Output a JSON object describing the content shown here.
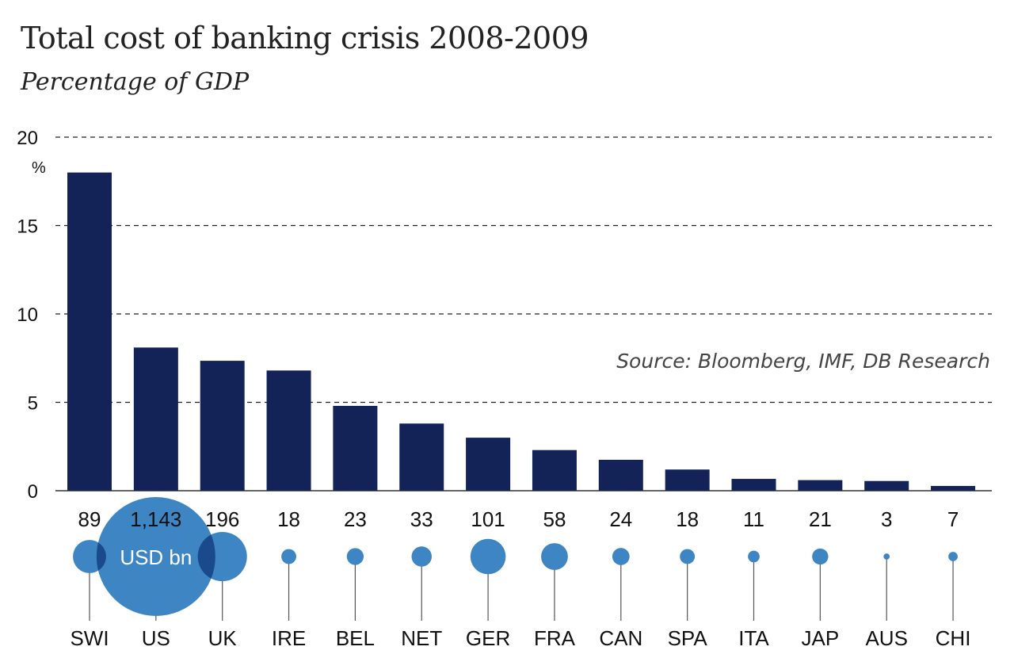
{
  "chart_data": {
    "type": "bar",
    "title": "Total cost of banking crisis 2008-2009",
    "subtitle": "Percentage of GDP",
    "ylabel": "%",
    "ylim": [
      0,
      20
    ],
    "yticks": [
      "0",
      "5",
      "10",
      "15",
      "20"
    ],
    "grid": true,
    "categories": [
      "SWI",
      "US",
      "UK",
      "IRE",
      "BEL",
      "NET",
      "GER",
      "FRA",
      "CAN",
      "SPA",
      "ITA",
      "JAP",
      "AUS",
      "CHI"
    ],
    "values": [
      18.0,
      8.1,
      7.35,
      6.8,
      4.8,
      3.8,
      3.0,
      2.3,
      1.75,
      1.2,
      0.67,
      0.6,
      0.55,
      0.27
    ],
    "bubble_series": {
      "unit_label": "USD bn",
      "labels": [
        "89",
        "1,143",
        "196",
        "18",
        "23",
        "33",
        "101",
        "58",
        "24",
        "18",
        "11",
        "21",
        "3",
        "7"
      ],
      "values": [
        89,
        1143,
        196,
        18,
        23,
        33,
        101,
        58,
        24,
        18,
        11,
        21,
        3,
        7
      ]
    },
    "source": "Source: Bloomberg, IMF, DB Research",
    "colors": {
      "bar": "#132257",
      "bubble": "#3d86c3",
      "overlap": "#1a4a8c"
    }
  }
}
